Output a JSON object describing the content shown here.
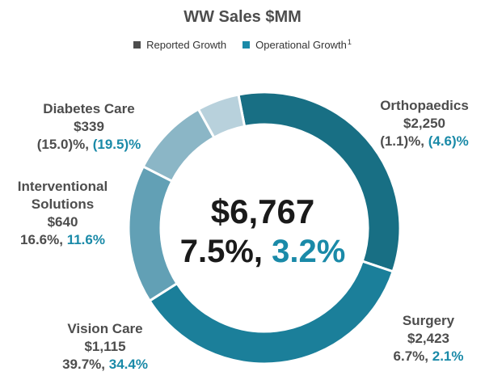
{
  "chart_data": {
    "type": "pie",
    "title": "WW Sales $MM",
    "legend": [
      {
        "label": "Reported Growth",
        "color": "#4d4d4d",
        "sup": ""
      },
      {
        "label": "Operational Growth",
        "color": "#1a8aa8",
        "sup": "1"
      }
    ],
    "center": {
      "total": "$6,767",
      "reported": "7.5%,",
      "operational": "3.2%"
    },
    "segments": [
      {
        "name": "Orthopaedics",
        "value": 2250,
        "value_label": "$2,250",
        "reported": "(1.1)%,",
        "operational": "(4.6)%",
        "color": "#186f84"
      },
      {
        "name": "Surgery",
        "value": 2423,
        "value_label": "$2,423",
        "reported": "6.7%,",
        "operational": "2.1%",
        "color": "#1b7f9a"
      },
      {
        "name": "Vision Care",
        "value": 1115,
        "value_label": "$1,115",
        "reported": "39.7%,",
        "operational": "34.4%",
        "color": "#62a0b5"
      },
      {
        "name": "Interventional Solutions",
        "value": 640,
        "value_label": "$640",
        "reported": "16.6%,",
        "operational": "11.6%",
        "color": "#8bb6c6"
      },
      {
        "name": "Diabetes Care",
        "value": 339,
        "value_label": "$339",
        "reported": "(15.0)%,",
        "operational": "(19.5)%",
        "color": "#b8d1dc"
      }
    ]
  }
}
